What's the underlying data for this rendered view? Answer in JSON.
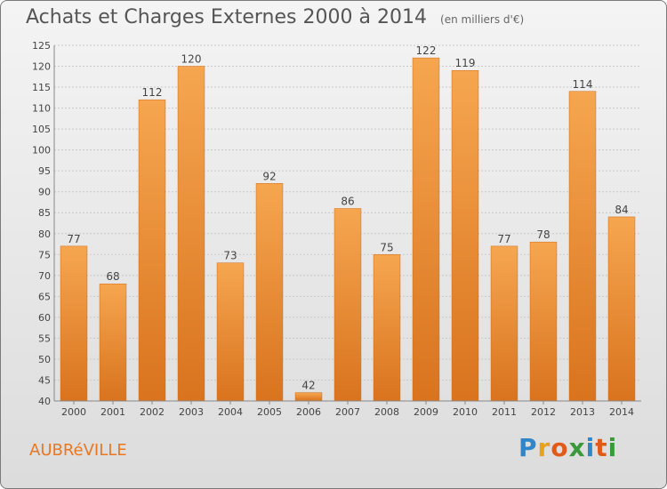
{
  "title": "Achats et Charges Externes 2000 à 2014",
  "subtitle": "(en milliers d'€)",
  "commune": "AUBRéVILLE",
  "brand": {
    "letters": [
      "P",
      "r",
      "o",
      "x",
      "i",
      "t",
      "i"
    ],
    "colors": [
      "#2f86c8",
      "#e8a11c",
      "#e05a1a",
      "#3a9a3a",
      "#2f86c8",
      "#e05a1a",
      "#3a9a3a"
    ]
  },
  "colors": {
    "bar_light": "#f6a650",
    "bar_dark": "#d9731e",
    "label": "#444444",
    "grid": "#c8c8c8"
  },
  "chart_data": {
    "type": "bar",
    "title": "Achats et Charges Externes 2000 à 2014",
    "subtitle": "(en milliers d'€)",
    "xlabel": "",
    "ylabel": "",
    "categories": [
      "2000",
      "2001",
      "2002",
      "2003",
      "2004",
      "2005",
      "2006",
      "2007",
      "2008",
      "2009",
      "2010",
      "2011",
      "2012",
      "2013",
      "2014"
    ],
    "values": [
      77,
      68,
      112,
      120,
      73,
      92,
      42,
      86,
      75,
      122,
      119,
      77,
      78,
      114,
      84
    ],
    "ylim": [
      40,
      125
    ],
    "yticks": [
      40,
      45,
      50,
      55,
      60,
      65,
      70,
      75,
      80,
      85,
      90,
      95,
      100,
      105,
      110,
      115,
      120,
      125
    ],
    "grid": true,
    "legend": "none"
  }
}
